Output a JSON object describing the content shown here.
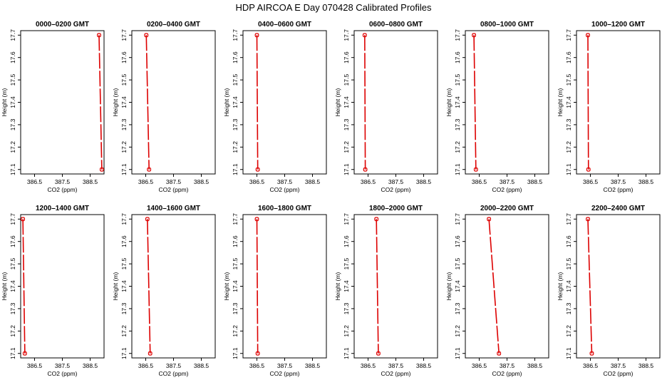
{
  "title": "HDP  AIRCOA E  Day 070428  Calibrated Profiles",
  "chart_data": [
    {
      "type": "line",
      "title": "0000–0200 GMT",
      "xlabel": "CO2 (ppm)",
      "ylabel": "Height (m)",
      "xlim": [
        396.0,
        399.0
      ],
      "ylim": [
        17.08,
        17.72
      ],
      "xticks": [
        "386.5",
        "387.5",
        "388.5"
      ],
      "yticks": [
        "17.1",
        "17.2",
        "17.3",
        "17.4",
        "17.5",
        "17.6",
        "17.7"
      ],
      "x": [
        398.82,
        398.92
      ],
      "y": [
        17.7,
        17.1
      ],
      "color": "#dd0000",
      "grid": false
    },
    {
      "type": "line",
      "title": "0200–0400 GMT",
      "xlabel": "CO2 (ppm)",
      "ylabel": "Height (m)",
      "xlim": [
        396.0,
        399.0
      ],
      "ylim": [
        17.08,
        17.72
      ],
      "xticks": [
        "386.5",
        "387.5",
        "388.5"
      ],
      "yticks": [
        "17.1",
        "17.2",
        "17.3",
        "17.4",
        "17.5",
        "17.6",
        "17.7"
      ],
      "x": [
        396.52,
        396.62
      ],
      "y": [
        17.7,
        17.1
      ],
      "color": "#dd0000",
      "grid": false
    },
    {
      "type": "line",
      "title": "0400–0600 GMT",
      "xlabel": "CO2 (ppm)",
      "ylabel": "Height (m)",
      "xlim": [
        396.0,
        399.0
      ],
      "ylim": [
        17.08,
        17.72
      ],
      "xticks": [
        "386.5",
        "387.5",
        "388.5"
      ],
      "yticks": [
        "17.1",
        "17.2",
        "17.3",
        "17.4",
        "17.5",
        "17.6",
        "17.7"
      ],
      "x": [
        396.5,
        396.53
      ],
      "y": [
        17.7,
        17.1
      ],
      "color": "#dd0000",
      "grid": false
    },
    {
      "type": "line",
      "title": "0600–0800 GMT",
      "xlabel": "CO2 (ppm)",
      "ylabel": "Height (m)",
      "xlim": [
        396.0,
        399.0
      ],
      "ylim": [
        17.08,
        17.72
      ],
      "xticks": [
        "386.5",
        "387.5",
        "388.5"
      ],
      "yticks": [
        "17.1",
        "17.2",
        "17.3",
        "17.4",
        "17.5",
        "17.6",
        "17.7"
      ],
      "x": [
        396.38,
        396.4
      ],
      "y": [
        17.7,
        17.1
      ],
      "color": "#dd0000",
      "grid": false
    },
    {
      "type": "line",
      "title": "0800–1000 GMT",
      "xlabel": "CO2 (ppm)",
      "ylabel": "Height (m)",
      "xlim": [
        396.0,
        399.0
      ],
      "ylim": [
        17.08,
        17.72
      ],
      "xticks": [
        "386.5",
        "387.5",
        "388.5"
      ],
      "yticks": [
        "17.1",
        "17.2",
        "17.3",
        "17.4",
        "17.5",
        "17.6",
        "17.7"
      ],
      "x": [
        396.31,
        396.38
      ],
      "y": [
        17.7,
        17.1
      ],
      "color": "#dd0000",
      "grid": false
    },
    {
      "type": "line",
      "title": "1000–1200 GMT",
      "xlabel": "CO2 (ppm)",
      "ylabel": "Height (m)",
      "xlim": [
        396.0,
        399.0
      ],
      "ylim": [
        17.08,
        17.72
      ],
      "xticks": [
        "386.5",
        "387.5",
        "388.5"
      ],
      "yticks": [
        "17.1",
        "17.2",
        "17.3",
        "17.4",
        "17.5",
        "17.6",
        "17.7"
      ],
      "x": [
        396.41,
        396.43
      ],
      "y": [
        17.7,
        17.1
      ],
      "color": "#dd0000",
      "grid": false
    },
    {
      "type": "line",
      "title": "1200–1400 GMT",
      "xlabel": "CO2 (ppm)",
      "ylabel": "Height (m)",
      "xlim": [
        396.0,
        399.0
      ],
      "ylim": [
        17.08,
        17.72
      ],
      "xticks": [
        "386.5",
        "387.5",
        "388.5"
      ],
      "yticks": [
        "17.1",
        "17.2",
        "17.3",
        "17.4",
        "17.5",
        "17.6",
        "17.7"
      ],
      "x": [
        396.08,
        396.15
      ],
      "y": [
        17.7,
        17.1
      ],
      "color": "#dd0000",
      "grid": false
    },
    {
      "type": "line",
      "title": "1400–1600 GMT",
      "xlabel": "CO2 (ppm)",
      "ylabel": "Height (m)",
      "xlim": [
        396.0,
        399.0
      ],
      "ylim": [
        17.08,
        17.72
      ],
      "xticks": [
        "386.5",
        "387.5",
        "388.5"
      ],
      "yticks": [
        "17.1",
        "17.2",
        "17.3",
        "17.4",
        "17.5",
        "17.6",
        "17.7"
      ],
      "x": [
        396.56,
        396.66
      ],
      "y": [
        17.7,
        17.1
      ],
      "color": "#dd0000",
      "grid": false
    },
    {
      "type": "line",
      "title": "1600–1800 GMT",
      "xlabel": "CO2 (ppm)",
      "ylabel": "Height (m)",
      "xlim": [
        396.0,
        399.0
      ],
      "ylim": [
        17.08,
        17.72
      ],
      "xticks": [
        "386.5",
        "387.5",
        "388.5"
      ],
      "yticks": [
        "17.1",
        "17.2",
        "17.3",
        "17.4",
        "17.5",
        "17.6",
        "17.7"
      ],
      "x": [
        396.5,
        396.53
      ],
      "y": [
        17.7,
        17.1
      ],
      "color": "#dd0000",
      "grid": false
    },
    {
      "type": "line",
      "title": "1800–2000 GMT",
      "xlabel": "CO2 (ppm)",
      "ylabel": "Height (m)",
      "xlim": [
        396.0,
        399.0
      ],
      "ylim": [
        17.08,
        17.72
      ],
      "xticks": [
        "386.5",
        "387.5",
        "388.5"
      ],
      "yticks": [
        "17.1",
        "17.2",
        "17.3",
        "17.4",
        "17.5",
        "17.6",
        "17.7"
      ],
      "x": [
        396.8,
        396.87
      ],
      "y": [
        17.7,
        17.1
      ],
      "color": "#dd0000",
      "grid": false
    },
    {
      "type": "line",
      "title": "2000–2200 GMT",
      "xlabel": "CO2 (ppm)",
      "ylabel": "Height (m)",
      "xlim": [
        396.0,
        399.0
      ],
      "ylim": [
        17.08,
        17.72
      ],
      "xticks": [
        "386.5",
        "387.5",
        "388.5"
      ],
      "yticks": [
        "17.1",
        "17.2",
        "17.3",
        "17.4",
        "17.5",
        "17.6",
        "17.7"
      ],
      "x": [
        396.85,
        397.21
      ],
      "y": [
        17.7,
        17.1
      ],
      "color": "#dd0000",
      "grid": false
    },
    {
      "type": "line",
      "title": "2200–2400 GMT",
      "xlabel": "CO2 (ppm)",
      "ylabel": "Height (m)",
      "xlim": [
        396.0,
        399.0
      ],
      "ylim": [
        17.08,
        17.72
      ],
      "xticks": [
        "386.5",
        "387.5",
        "388.5"
      ],
      "yticks": [
        "17.1",
        "17.2",
        "17.3",
        "17.4",
        "17.5",
        "17.6",
        "17.7"
      ],
      "x": [
        396.41,
        396.55
      ],
      "y": [
        17.7,
        17.1
      ],
      "color": "#dd0000",
      "grid": false
    }
  ]
}
